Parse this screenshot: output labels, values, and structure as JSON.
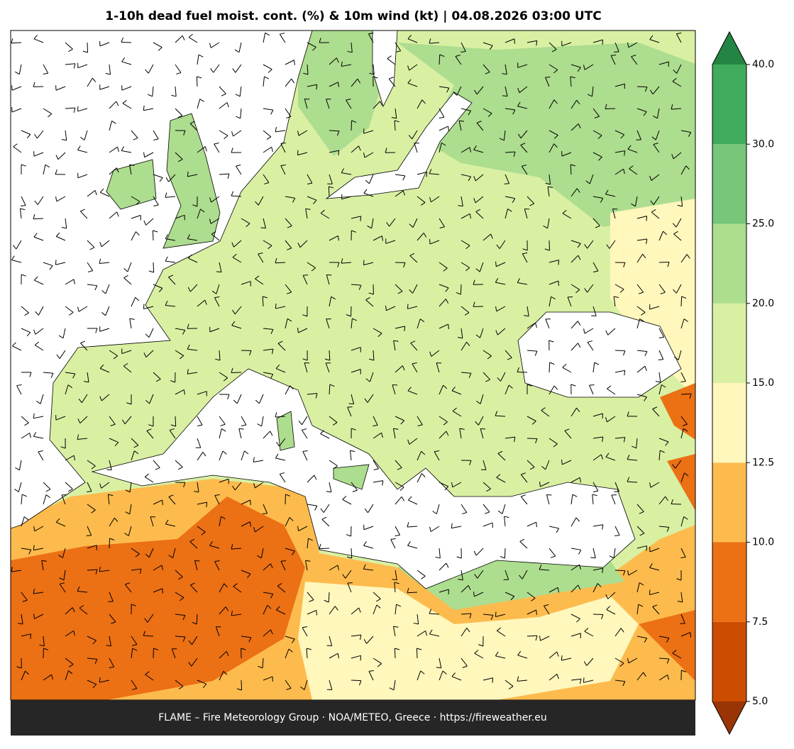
{
  "title": "1-10h dead fuel moist. cont. (%) & 10m wind (kt)  |  04.08.2026 03:00 UTC",
  "footer": "FLAME – Fire Meteorology Group · NOA/METEO, Greece · https://fireweather.eu",
  "colorbar": {
    "ticks": [
      {
        "value": 5,
        "label": "5.0"
      },
      {
        "value": 7.5,
        "label": "7.5"
      },
      {
        "value": 10,
        "label": "10.0"
      },
      {
        "value": 12.5,
        "label": "12.5"
      },
      {
        "value": 15,
        "label": "15.0"
      },
      {
        "value": 20,
        "label": "20.0"
      },
      {
        "value": 25,
        "label": "25.0"
      },
      {
        "value": 30,
        "label": "30.0"
      },
      {
        "value": 40,
        "label": "40.0"
      }
    ],
    "colors": [
      "#cc4c02",
      "#ec7014",
      "#fdbb4d",
      "#fff7bc",
      "#d9f0a3",
      "#addd8e",
      "#78c679",
      "#41ab5d"
    ],
    "under_color": "#993404",
    "over_color": "#238443"
  }
}
